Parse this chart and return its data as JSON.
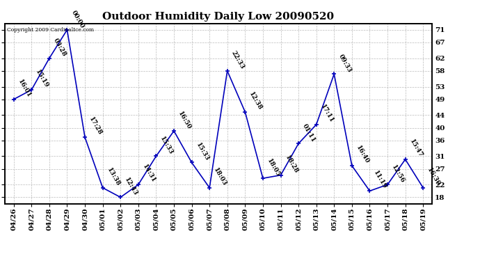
{
  "title": "Outdoor Humidity Daily Low 20090520",
  "copyright": "Copyright 2009 CardinalIce.com",
  "x_labels": [
    "04/26",
    "04/27",
    "04/28",
    "04/29",
    "04/30",
    "05/01",
    "05/02",
    "05/03",
    "05/04",
    "05/05",
    "05/06",
    "05/07",
    "05/08",
    "05/09",
    "05/10",
    "05/11",
    "05/12",
    "05/13",
    "05/14",
    "05/15",
    "05/16",
    "05/17",
    "05/18",
    "05/19"
  ],
  "y_values": [
    49,
    52,
    62,
    71,
    37,
    21,
    18,
    22,
    31,
    39,
    29,
    21,
    58,
    45,
    24,
    25,
    35,
    41,
    57,
    28,
    20,
    22,
    30,
    21
  ],
  "time_labels": [
    "16:01",
    "15:19",
    "03:28",
    "00:00",
    "17:28",
    "13:38",
    "12:43",
    "14:31",
    "15:33",
    "16:50",
    "15:33",
    "18:03",
    "22:33",
    "12:38",
    "18:05",
    "18:28",
    "01:11",
    "17:11",
    "09:33",
    "16:40",
    "11:19",
    "12:56",
    "15:47",
    "16:30"
  ],
  "line_color": "#0000bb",
  "marker_color": "#0000bb",
  "background_color": "#ffffff",
  "grid_color": "#aaaaaa",
  "y_ticks": [
    18,
    22,
    27,
    31,
    36,
    40,
    44,
    49,
    53,
    58,
    62,
    67,
    71
  ],
  "y_min": 16,
  "y_max": 73,
  "title_fontsize": 11,
  "label_fontsize": 6.5,
  "tick_fontsize": 7.5
}
